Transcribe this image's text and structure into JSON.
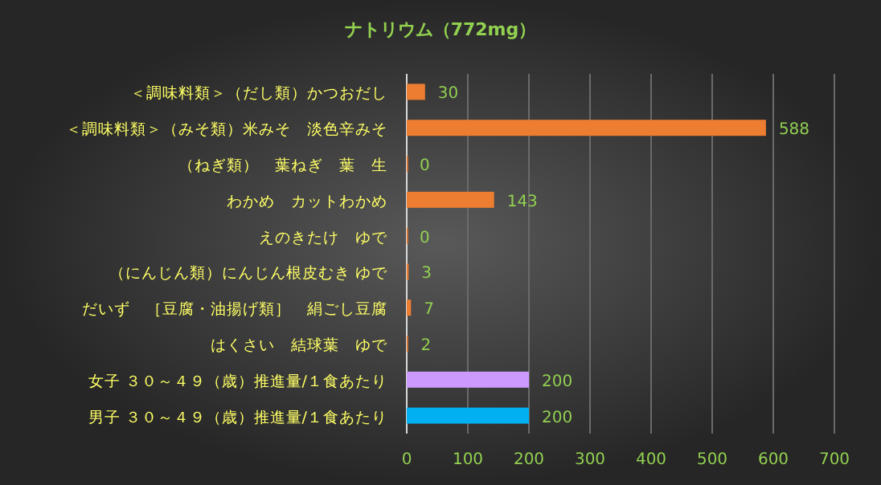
{
  "chart_data": {
    "type": "bar",
    "orientation": "horizontal",
    "title": "ナトリウム（772mg）",
    "categories": [
      "＜調味料類＞（だし類）かつおだし",
      "＜調味料類＞（みそ類）米みそ　淡色辛みそ",
      "（ねぎ類）　葉ねぎ　葉　生",
      "わかめ　カットわかめ",
      "えのきたけ　ゆで",
      "（にんじん類）にんじん根皮むき ゆで",
      "だいず　［豆腐・油揚げ類］　絹ごし豆腐",
      "はくさい　結球葉　ゆで",
      "女子 ３０～４９（歳）推進量/１食あたり",
      "男子 ３０～４９（歳）推進量/１食あたり"
    ],
    "values": [
      30,
      588,
      0,
      143,
      0,
      3,
      7,
      2,
      200,
      200
    ],
    "colors": [
      "#ed7d31",
      "#ed7d31",
      "#ed7d31",
      "#ed7d31",
      "#ed7d31",
      "#ed7d31",
      "#ed7d31",
      "#ed7d31",
      "#cc99ff",
      "#00b0f0"
    ],
    "xlim": [
      0,
      700
    ],
    "xticks": [
      0,
      100,
      200,
      300,
      400,
      500,
      600,
      700
    ],
    "grid": "x",
    "data_labels": true
  }
}
